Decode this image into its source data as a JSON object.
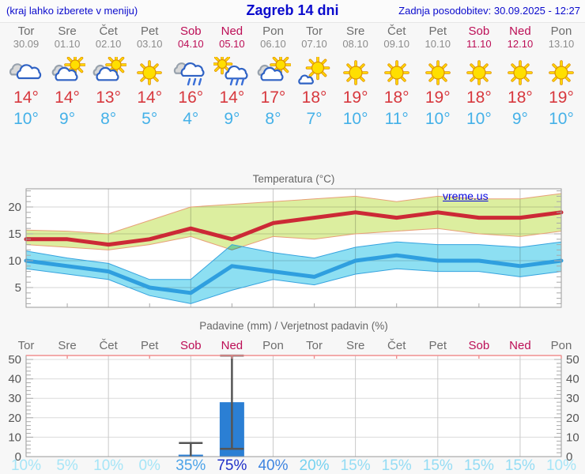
{
  "header": {
    "left_note": "(kraj lahko izberete v meniju)",
    "title": "Zagreb 14 dni",
    "updated": "Zadnja posodobitev: 30.09.2025 - 12:27"
  },
  "watermark": "vreme.us",
  "days": [
    {
      "name": "Tor",
      "date": "30.09",
      "weekend": false,
      "icon": "cloudy",
      "tmax": "14°",
      "tmin": "10°",
      "precip_prob": "10%",
      "prob_color": "#a6e5f7"
    },
    {
      "name": "Sre",
      "date": "01.10",
      "weekend": false,
      "icon": "sun-cloud",
      "tmax": "14°",
      "tmin": "9°",
      "precip_prob": "5%",
      "prob_color": "#a6e5f7"
    },
    {
      "name": "Čet",
      "date": "02.10",
      "weekend": false,
      "icon": "sun-cloud",
      "tmax": "13°",
      "tmin": "8°",
      "precip_prob": "10%",
      "prob_color": "#a6e5f7"
    },
    {
      "name": "Pet",
      "date": "03.10",
      "weekend": false,
      "icon": "sunny",
      "tmax": "14°",
      "tmin": "5°",
      "precip_prob": "0%",
      "prob_color": "#a6e5f7"
    },
    {
      "name": "Sob",
      "date": "04.10",
      "weekend": true,
      "icon": "rain",
      "tmax": "16°",
      "tmin": "4°",
      "precip_prob": "35%",
      "prob_color": "#4ba3e8"
    },
    {
      "name": "Ned",
      "date": "05.10",
      "weekend": true,
      "icon": "sun-rain",
      "tmax": "14°",
      "tmin": "9°",
      "precip_prob": "75%",
      "prob_color": "#2030c8"
    },
    {
      "name": "Pon",
      "date": "06.10",
      "weekend": false,
      "icon": "sun-cloud",
      "tmax": "17°",
      "tmin": "8°",
      "precip_prob": "40%",
      "prob_color": "#3f85e0"
    },
    {
      "name": "Tor",
      "date": "07.10",
      "weekend": false,
      "icon": "sun-smallcloud",
      "tmax": "18°",
      "tmin": "7°",
      "precip_prob": "20%",
      "prob_color": "#77d2f0"
    },
    {
      "name": "Sre",
      "date": "08.10",
      "weekend": false,
      "icon": "sunny",
      "tmax": "19°",
      "tmin": "10°",
      "precip_prob": "15%",
      "prob_color": "#94dcf4"
    },
    {
      "name": "Čet",
      "date": "09.10",
      "weekend": false,
      "icon": "sunny",
      "tmax": "18°",
      "tmin": "11°",
      "precip_prob": "15%",
      "prob_color": "#94dcf4"
    },
    {
      "name": "Pet",
      "date": "10.10",
      "weekend": false,
      "icon": "sunny",
      "tmax": "19°",
      "tmin": "10°",
      "precip_prob": "15%",
      "prob_color": "#94dcf4"
    },
    {
      "name": "Sob",
      "date": "11.10",
      "weekend": true,
      "icon": "sunny",
      "tmax": "18°",
      "tmin": "10°",
      "precip_prob": "15%",
      "prob_color": "#94dcf4"
    },
    {
      "name": "Ned",
      "date": "12.10",
      "weekend": true,
      "icon": "sunny",
      "tmax": "18°",
      "tmin": "9°",
      "precip_prob": "15%",
      "prob_color": "#94dcf4"
    },
    {
      "name": "Pon",
      "date": "13.10",
      "weekend": false,
      "icon": "sunny",
      "tmax": "19°",
      "tmin": "10°",
      "precip_prob": "10%",
      "prob_color": "#a6e5f7"
    }
  ],
  "chart_data": [
    {
      "type": "line",
      "title": "Temperatura (°C)",
      "x_categories": [
        "Tor",
        "Sre",
        "Čet",
        "Pet",
        "Sob",
        "Ned",
        "Pon",
        "Tor",
        "Sre",
        "Čet",
        "Pet",
        "Sob",
        "Ned",
        "Pon"
      ],
      "ylim": [
        1,
        23.5
      ],
      "yticks": [
        5,
        10,
        15,
        20
      ],
      "grid": true,
      "grid_days_idx": [
        2,
        4,
        6,
        8,
        10,
        12
      ],
      "series": [
        {
          "name": "max_temp_range",
          "band": true,
          "color": "#dcee9f",
          "edge_color": "#e8a078",
          "upper": [
            15.7,
            15.5,
            15,
            17.5,
            20,
            20.5,
            21,
            21.5,
            22,
            21,
            22,
            21.5,
            21.5,
            22.5
          ],
          "lower": [
            13,
            12.5,
            12,
            13,
            14.5,
            12,
            14.5,
            14,
            15,
            15.5,
            16,
            15,
            14.5,
            15.5
          ]
        },
        {
          "name": "min_temp_range",
          "band": true,
          "color": "#8ddff2",
          "edge_color": "#35a3df",
          "upper": [
            11.8,
            10.5,
            9.5,
            6.5,
            6.5,
            13,
            11.5,
            10.5,
            12.5,
            13.5,
            13,
            13,
            12.5,
            13.5
          ],
          "lower": [
            8.5,
            7.5,
            6.5,
            3.5,
            2,
            4.5,
            6.5,
            5.5,
            7.5,
            8.5,
            8,
            8,
            7,
            8
          ]
        },
        {
          "name": "max_temp",
          "color": "#cc2936",
          "values": [
            14,
            14,
            13,
            14,
            16,
            14,
            17,
            18,
            19,
            18,
            19,
            18,
            18,
            19
          ]
        },
        {
          "name": "min_temp",
          "color": "#2f9fdf",
          "values": [
            10,
            9,
            8,
            5,
            4,
            9,
            8,
            7,
            10,
            11,
            10,
            10,
            9,
            10
          ]
        }
      ]
    },
    {
      "type": "bar",
      "title": "Padavine (mm) / Verjetnost padavin (%)",
      "categories": [
        "Tor",
        "Sre",
        "Čet",
        "Pet",
        "Sob",
        "Ned",
        "Pon",
        "Tor",
        "Sre",
        "Čet",
        "Pet",
        "Sob",
        "Ned",
        "Pon"
      ],
      "values": [
        0,
        0,
        0,
        0,
        1,
        28,
        0,
        0,
        0,
        0,
        0,
        0,
        0,
        0
      ],
      "error_low": [
        null,
        null,
        null,
        null,
        0,
        4,
        null,
        null,
        null,
        null,
        null,
        null,
        null,
        null
      ],
      "error_high": [
        null,
        null,
        null,
        null,
        7,
        52,
        null,
        null,
        null,
        null,
        null,
        null,
        null,
        null
      ],
      "probabilities": [
        "10%",
        "5%",
        "10%",
        "0%",
        "35%",
        "75%",
        "40%",
        "20%",
        "15%",
        "15%",
        "15%",
        "15%",
        "15%",
        "10%"
      ],
      "ylim": [
        0,
        52
      ],
      "yticks": [
        0,
        10,
        20,
        30,
        40,
        50
      ],
      "grid": true,
      "bar_color": "#2b7fd4",
      "whisker_color": "#555555",
      "top_frame_color": "#f08f8f"
    }
  ]
}
